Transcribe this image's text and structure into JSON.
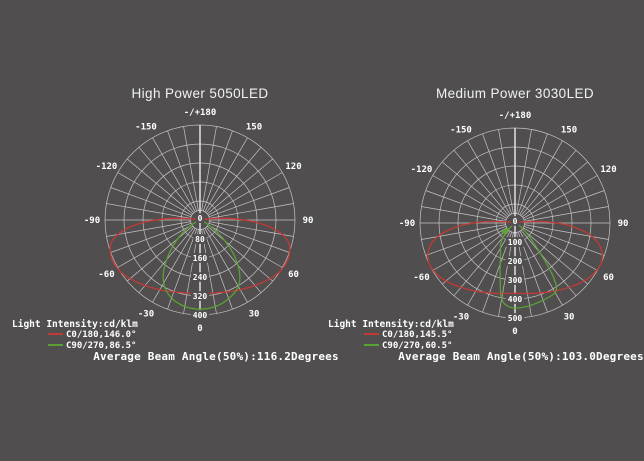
{
  "style": {
    "background": "#504e4f",
    "grid_color": "#c6c4c5",
    "axis_color": "#ececec",
    "text_color": "#ffffff"
  },
  "chart_data": [
    {
      "type": "polar",
      "title": "High Power 5050LED",
      "legend": {
        "heading": "Light Intensity:cd/klm",
        "entries": [
          {
            "label": "C0/180,146.0°",
            "color": "#c23a34"
          },
          {
            "label": "C90/270,86.5°",
            "color": "#5aa134"
          }
        ]
      },
      "beam_text": "Average Beam Angle(50%):116.2Degrees",
      "polar": {
        "r_max": 400,
        "r_ticks": [
          0,
          80,
          160,
          240,
          320,
          400
        ],
        "angle_step_deg": 10,
        "angle_labels": [
          {
            "a": 0,
            "t": "0"
          },
          {
            "a": 30,
            "t": "30"
          },
          {
            "a": 60,
            "t": "60"
          },
          {
            "a": 90,
            "t": "90"
          },
          {
            "a": 120,
            "t": "120"
          },
          {
            "a": 150,
            "t": "150"
          },
          {
            "a": 180,
            "t": "-/+180"
          },
          {
            "a": -150,
            "t": "-150"
          },
          {
            "a": -120,
            "t": "-120"
          },
          {
            "a": -90,
            "t": "-90"
          },
          {
            "a": -60,
            "t": "-60"
          },
          {
            "a": -30,
            "t": "-30"
          }
        ],
        "series": [
          {
            "name": "C0/180",
            "color": "#c23a34",
            "points": [
              [
                -100,
                0
              ],
              [
                -97,
                45
              ],
              [
                -94,
                105
              ],
              [
                -91,
                165
              ],
              [
                -88,
                230
              ],
              [
                -85,
                285
              ],
              [
                -82,
                330
              ],
              [
                -79,
                362
              ],
              [
                -76,
                384
              ],
              [
                -72,
                398
              ],
              [
                -68,
                404
              ],
              [
                -64,
                406
              ],
              [
                -60,
                403
              ],
              [
                -55,
                396
              ],
              [
                -50,
                384
              ],
              [
                -45,
                372
              ],
              [
                -40,
                360
              ],
              [
                -35,
                349
              ],
              [
                -30,
                339
              ],
              [
                -25,
                330
              ],
              [
                -20,
                322
              ],
              [
                -15,
                316
              ],
              [
                -10,
                312
              ],
              [
                -5,
                309
              ],
              [
                0,
                308
              ],
              [
                5,
                309
              ],
              [
                10,
                312
              ],
              [
                15,
                316
              ],
              [
                20,
                322
              ],
              [
                25,
                330
              ],
              [
                30,
                339
              ],
              [
                35,
                349
              ],
              [
                40,
                360
              ],
              [
                45,
                372
              ],
              [
                50,
                384
              ],
              [
                55,
                396
              ],
              [
                60,
                403
              ],
              [
                64,
                406
              ],
              [
                68,
                404
              ],
              [
                72,
                398
              ],
              [
                76,
                384
              ],
              [
                79,
                362
              ],
              [
                82,
                330
              ],
              [
                85,
                285
              ],
              [
                88,
                230
              ],
              [
                91,
                165
              ],
              [
                94,
                105
              ],
              [
                97,
                45
              ],
              [
                100,
                0
              ]
            ]
          },
          {
            "name": "C90/270",
            "color": "#5aa134",
            "points": [
              [
                -68,
                0
              ],
              [
                -63,
                22
              ],
              [
                -58,
                55
              ],
              [
                -53,
                95
              ],
              [
                -48,
                140
              ],
              [
                -43,
                188
              ],
              [
                -38,
                240
              ],
              [
                -33,
                285
              ],
              [
                -28,
                318
              ],
              [
                -23,
                340
              ],
              [
                -18,
                355
              ],
              [
                -13,
                365
              ],
              [
                -8,
                372
              ],
              [
                -3,
                375
              ],
              [
                0,
                376
              ],
              [
                5,
                374
              ],
              [
                10,
                370
              ],
              [
                15,
                363
              ],
              [
                20,
                352
              ],
              [
                25,
                340
              ],
              [
                30,
                324
              ],
              [
                34,
                300
              ],
              [
                38,
                268
              ],
              [
                42,
                228
              ],
              [
                46,
                185
              ],
              [
                50,
                138
              ],
              [
                54,
                95
              ],
              [
                58,
                58
              ],
              [
                62,
                28
              ],
              [
                66,
                8
              ],
              [
                70,
                0
              ]
            ]
          }
        ]
      }
    },
    {
      "type": "polar",
      "title": "Medium Power 3030LED",
      "legend": {
        "heading": "Light Intensity:cd/klm",
        "entries": [
          {
            "label": "C0/180,145.5°",
            "color": "#c23a34"
          },
          {
            "label": "C90/270,60.5°",
            "color": "#5aa134"
          }
        ]
      },
      "beam_text": "Average Beam Angle(50%):103.0Degrees",
      "polar": {
        "r_max": 500,
        "r_ticks": [
          0,
          100,
          200,
          300,
          400,
          500
        ],
        "angle_step_deg": 10,
        "angle_labels": [
          {
            "a": 0,
            "t": "0"
          },
          {
            "a": 30,
            "t": "30"
          },
          {
            "a": 60,
            "t": "60"
          },
          {
            "a": 90,
            "t": "90"
          },
          {
            "a": 120,
            "t": "120"
          },
          {
            "a": 150,
            "t": "150"
          },
          {
            "a": 180,
            "t": "-/+180"
          },
          {
            "a": -150,
            "t": "-150"
          },
          {
            "a": -120,
            "t": "-120"
          },
          {
            "a": -90,
            "t": "-90"
          },
          {
            "a": -60,
            "t": "-60"
          },
          {
            "a": -30,
            "t": "-30"
          }
        ],
        "series": [
          {
            "name": "C0/180",
            "color": "#c23a34",
            "points": [
              [
                -100,
                0
              ],
              [
                -97,
                50
              ],
              [
                -94,
                120
              ],
              [
                -91,
                195
              ],
              [
                -88,
                270
              ],
              [
                -85,
                330
              ],
              [
                -82,
                385
              ],
              [
                -79,
                425
              ],
              [
                -76,
                455
              ],
              [
                -72,
                480
              ],
              [
                -68,
                495
              ],
              [
                -64,
                500
              ],
              [
                -60,
                497
              ],
              [
                -55,
                488
              ],
              [
                -50,
                474
              ],
              [
                -45,
                458
              ],
              [
                -40,
                442
              ],
              [
                -35,
                428
              ],
              [
                -30,
                414
              ],
              [
                -25,
                402
              ],
              [
                -20,
                392
              ],
              [
                -15,
                383
              ],
              [
                -10,
                377
              ],
              [
                -5,
                372
              ],
              [
                0,
                370
              ],
              [
                5,
                372
              ],
              [
                10,
                377
              ],
              [
                15,
                383
              ],
              [
                20,
                392
              ],
              [
                25,
                402
              ],
              [
                30,
                414
              ],
              [
                35,
                428
              ],
              [
                40,
                442
              ],
              [
                45,
                458
              ],
              [
                50,
                474
              ],
              [
                55,
                488
              ],
              [
                60,
                497
              ],
              [
                64,
                500
              ],
              [
                68,
                495
              ],
              [
                72,
                480
              ],
              [
                76,
                455
              ],
              [
                79,
                425
              ],
              [
                82,
                385
              ],
              [
                85,
                330
              ],
              [
                88,
                270
              ],
              [
                91,
                195
              ],
              [
                94,
                120
              ],
              [
                97,
                50
              ],
              [
                100,
                0
              ]
            ]
          },
          {
            "name": "C90/270",
            "color": "#5aa134",
            "arrow": {
              "x_off": -9.5,
              "y_off": 7.5,
              "rot": 38
            },
            "points": [
              [
                -50,
                0
              ],
              [
                -45,
                55
              ],
              [
                -40,
                100
              ],
              [
                -34,
                135
              ],
              [
                -28,
                162
              ],
              [
                -23,
                195
              ],
              [
                -18,
                255
              ],
              [
                -14,
                320
              ],
              [
                -11,
                390
              ],
              [
                -8,
                425
              ],
              [
                -4,
                442
              ],
              [
                0,
                448
              ],
              [
                5,
                446
              ],
              [
                10,
                442
              ],
              [
                14,
                438
              ],
              [
                18,
                434
              ],
              [
                22,
                431
              ],
              [
                26,
                428
              ],
              [
                29,
                424
              ],
              [
                32,
                412
              ],
              [
                34,
                382
              ],
              [
                36,
                330
              ],
              [
                38,
                265
              ],
              [
                40,
                205
              ],
              [
                43,
                148
              ],
              [
                46,
                105
              ],
              [
                50,
                72
              ],
              [
                54,
                48
              ],
              [
                58,
                28
              ],
              [
                62,
                10
              ],
              [
                65,
                0
              ]
            ]
          }
        ]
      }
    }
  ]
}
